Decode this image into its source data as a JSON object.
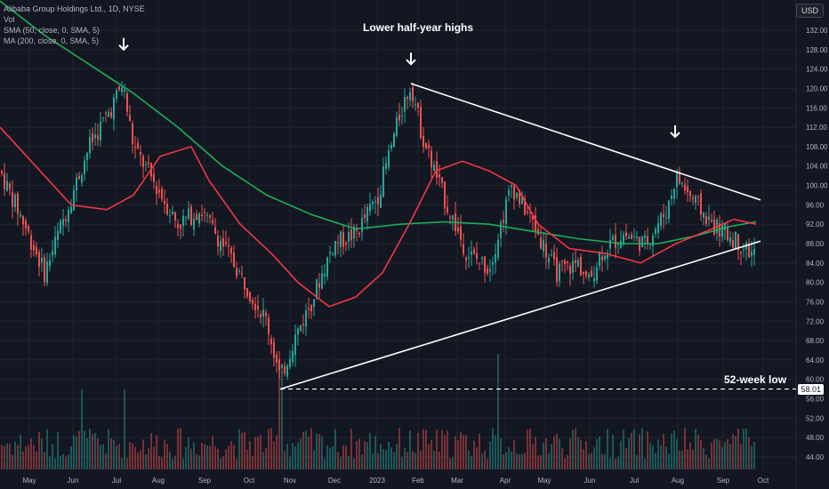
{
  "legend": {
    "symbol": "Alibaba Group Holdings Ltd., 1D, NYSE",
    "vol": "Vol",
    "sma50": "SMA (50, close, 0, SMA, 5)",
    "ma200": "MA (200, close, 0, SMA, 5)"
  },
  "currency": "USD",
  "annotations": {
    "title": "Lower half-year highs",
    "low": "52-week low",
    "last_price": "58.01"
  },
  "colors": {
    "background": "#131722",
    "up": "#26a69a",
    "down": "#ef5350",
    "sma50": "#f23645",
    "ma200": "#22ab5b",
    "trendline": "#ffffff"
  },
  "chart_data": {
    "type": "candlestick",
    "y_ticks": [
      "132.00",
      "128.00",
      "124.00",
      "120.00",
      "116.00",
      "112.00",
      "108.00",
      "104.00",
      "100.00",
      "96.00",
      "92.00",
      "88.00",
      "84.00",
      "80.00",
      "76.00",
      "72.00",
      "68.00",
      "64.00",
      "60.00",
      "56.00",
      "52.00",
      "48.00",
      "44.00"
    ],
    "x_ticks": [
      "May",
      "Jun",
      "Jul",
      "Aug",
      "Sep",
      "Oct",
      "Nov",
      "Dec",
      "2023",
      "Feb",
      "Mar",
      "Apr",
      "May",
      "Jun",
      "Jul",
      "Aug",
      "Sep",
      "Oct"
    ],
    "ylim": [
      42,
      135
    ],
    "price_path": [
      [
        0,
        103
      ],
      [
        25,
        93
      ],
      [
        50,
        82
      ],
      [
        75,
        95
      ],
      [
        100,
        108
      ],
      [
        125,
        116
      ],
      [
        138,
        121
      ],
      [
        150,
        108
      ],
      [
        175,
        100
      ],
      [
        200,
        92
      ],
      [
        225,
        95
      ],
      [
        250,
        88
      ],
      [
        275,
        80
      ],
      [
        300,
        72
      ],
      [
        315,
        60
      ],
      [
        330,
        68
      ],
      [
        350,
        76
      ],
      [
        375,
        88
      ],
      [
        400,
        90
      ],
      [
        425,
        98
      ],
      [
        450,
        115
      ],
      [
        462,
        121
      ],
      [
        475,
        110
      ],
      [
        500,
        97
      ],
      [
        525,
        86
      ],
      [
        550,
        83
      ],
      [
        575,
        100
      ],
      [
        600,
        92
      ],
      [
        625,
        82
      ],
      [
        650,
        84
      ],
      [
        662,
        80
      ],
      [
        675,
        86
      ],
      [
        700,
        90
      ],
      [
        725,
        88
      ],
      [
        750,
        95
      ],
      [
        760,
        102
      ],
      [
        775,
        98
      ],
      [
        800,
        92
      ],
      [
        825,
        89
      ],
      [
        845,
        86
      ]
    ],
    "sma50_path": [
      [
        0,
        112
      ],
      [
        40,
        104
      ],
      [
        80,
        96
      ],
      [
        120,
        95
      ],
      [
        150,
        98
      ],
      [
        180,
        106
      ],
      [
        215,
        108
      ],
      [
        235,
        101
      ],
      [
        270,
        92
      ],
      [
        305,
        86
      ],
      [
        335,
        80
      ],
      [
        370,
        75
      ],
      [
        400,
        77
      ],
      [
        430,
        82
      ],
      [
        460,
        92
      ],
      [
        490,
        103
      ],
      [
        520,
        105
      ],
      [
        550,
        103
      ],
      [
        580,
        100
      ],
      [
        605,
        92
      ],
      [
        640,
        87
      ],
      [
        680,
        86
      ],
      [
        720,
        84
      ],
      [
        760,
        88
      ],
      [
        800,
        91
      ],
      [
        825,
        93
      ],
      [
        850,
        92
      ]
    ],
    "ma200_path": [
      [
        0,
        138
      ],
      [
        50,
        131
      ],
      [
        100,
        125
      ],
      [
        150,
        119
      ],
      [
        200,
        112
      ],
      [
        250,
        104
      ],
      [
        300,
        98
      ],
      [
        350,
        94
      ],
      [
        400,
        91
      ],
      [
        450,
        92
      ],
      [
        500,
        92.5
      ],
      [
        550,
        92
      ],
      [
        600,
        90.5
      ],
      [
        650,
        89
      ],
      [
        700,
        88
      ],
      [
        740,
        88
      ],
      [
        780,
        89.5
      ],
      [
        820,
        91.5
      ],
      [
        850,
        92.5
      ]
    ],
    "trendlines": [
      {
        "from": [
          462,
          121
        ],
        "to": [
          855,
          97
        ]
      },
      {
        "from": [
          315,
          58.01
        ],
        "to": [
          855,
          88.5
        ]
      }
    ],
    "low_level": 58.01,
    "arrows_at": [
      [
        139,
        128
      ],
      [
        462,
        125
      ],
      [
        759,
        110
      ]
    ]
  }
}
